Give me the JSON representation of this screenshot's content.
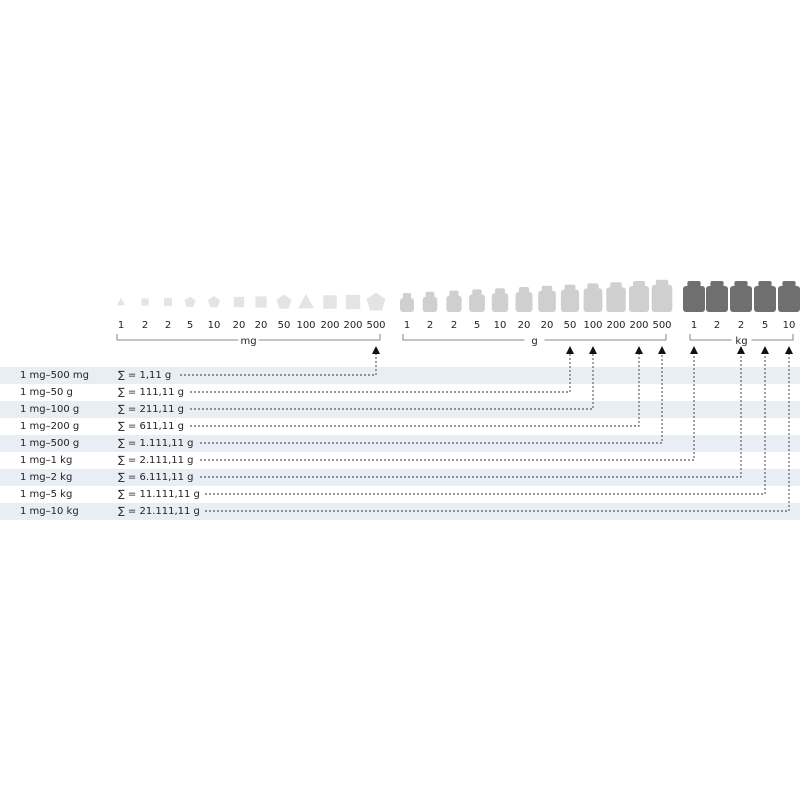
{
  "groups": [
    {
      "unit": "mg",
      "weights": [
        "1",
        "2",
        "2",
        "5",
        "10",
        "20",
        "20",
        "50",
        "100",
        "200",
        "200",
        "500"
      ]
    },
    {
      "unit": "g",
      "weights": [
        "1",
        "2",
        "2",
        "5",
        "10",
        "20",
        "20",
        "50",
        "100",
        "200",
        "200",
        "500"
      ]
    },
    {
      "unit": "kg",
      "weights": [
        "1",
        "2",
        "2",
        "5",
        "10"
      ]
    }
  ],
  "rows": [
    {
      "range": "1 mg–500 mg",
      "sum": "∑ = 1,11 g"
    },
    {
      "range": "1 mg–50 g",
      "sum": "∑ = 111,11 g"
    },
    {
      "range": "1 mg–100 g",
      "sum": "∑ = 211,11 g"
    },
    {
      "range": "1 mg–200 g",
      "sum": "∑ = 611,11 g"
    },
    {
      "range": "1 mg–500 g",
      "sum": "∑ = 1.111,11 g"
    },
    {
      "range": "1 mg–1 kg",
      "sum": "∑ = 2.111,11 g"
    },
    {
      "range": "1 mg–2 kg",
      "sum": "∑ = 6.111,11 g"
    },
    {
      "range": "1 mg–5 kg",
      "sum": "∑ = 11.111,11 g"
    },
    {
      "range": "1 mg–10 kg",
      "sum": "∑ = 21.111,11 g"
    }
  ]
}
